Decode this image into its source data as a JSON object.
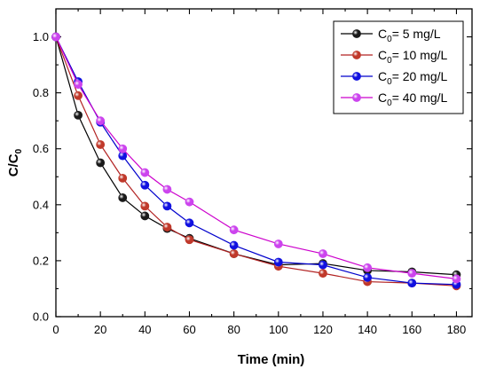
{
  "chart_data": {
    "type": "line",
    "xlabel": "Time (min)",
    "ylabel_main": "C/C",
    "ylabel_sub": "0",
    "xlim": [
      0,
      187
    ],
    "ylim": [
      0,
      1.1
    ],
    "xticks": [
      0,
      20,
      40,
      60,
      80,
      100,
      120,
      140,
      160,
      180
    ],
    "yticks": [
      0.0,
      0.2,
      0.4,
      0.6,
      0.8,
      1.0
    ],
    "legend_position": "top-right",
    "x": [
      0,
      10,
      20,
      30,
      40,
      50,
      60,
      80,
      100,
      120,
      140,
      160,
      180
    ],
    "series": [
      {
        "name": "C0= 5 mg/L",
        "label_prefix": "C",
        "label_sub": "0",
        "label_suffix": "= 5 mg/L",
        "color": "#000000",
        "marker": "#1a1a1a",
        "values": [
          1.0,
          0.72,
          0.55,
          0.425,
          0.36,
          0.315,
          0.28,
          0.225,
          0.185,
          0.19,
          0.165,
          0.16,
          0.15
        ]
      },
      {
        "name": "C0= 10 mg/L",
        "label_prefix": "C",
        "label_sub": "0",
        "label_suffix": "= 10 mg/L",
        "color": "#b22222",
        "marker": "#c0392b",
        "values": [
          1.0,
          0.79,
          0.615,
          0.495,
          0.395,
          0.32,
          0.275,
          0.225,
          0.18,
          0.155,
          0.125,
          0.12,
          0.11
        ]
      },
      {
        "name": "C0= 20 mg/L",
        "label_prefix": "C",
        "label_sub": "0",
        "label_suffix": "= 20 mg/L",
        "color": "#0000cc",
        "marker": "#1010e0",
        "values": [
          1.0,
          0.84,
          0.695,
          0.575,
          0.47,
          0.395,
          0.335,
          0.255,
          0.195,
          0.185,
          0.14,
          0.12,
          0.115
        ]
      },
      {
        "name": "C0= 40 mg/L",
        "label_prefix": "C",
        "label_sub": "0",
        "label_suffix": "= 40 mg/L",
        "color": "#cc00cc",
        "marker": "#cc44ee",
        "values": [
          1.0,
          0.83,
          0.7,
          0.6,
          0.515,
          0.455,
          0.41,
          0.31,
          0.26,
          0.225,
          0.175,
          0.155,
          0.135
        ]
      }
    ]
  }
}
